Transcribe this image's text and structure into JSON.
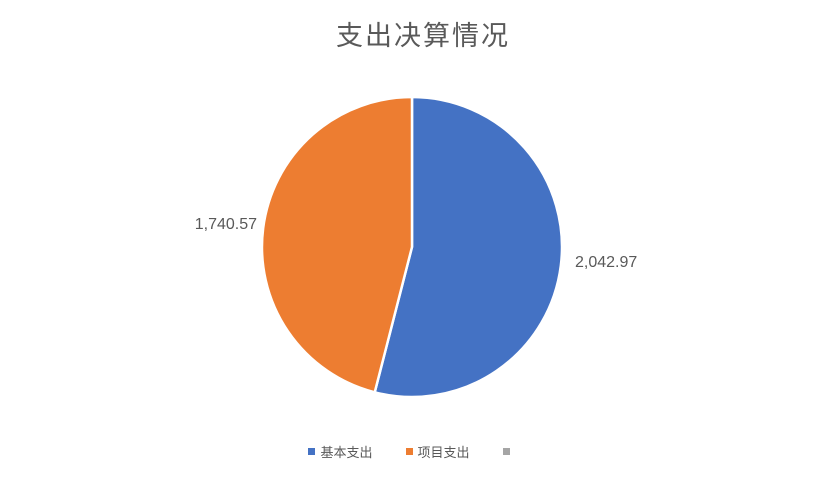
{
  "page": {
    "background_color": "#FFFFFF"
  },
  "chart_data": {
    "type": "pie",
    "title": "支出决算情况",
    "start_angle_deg": 0,
    "direction": "clockwise",
    "radius_px": 150,
    "slices": [
      {
        "label": "基本支出",
        "value": 2042.97,
        "display": "2,042.97",
        "color": "#4472C4"
      },
      {
        "label": "项目支出",
        "value": 1740.57,
        "display": "1,740.57",
        "color": "#ED7D31"
      }
    ],
    "legend": [
      {
        "label": "基本支出",
        "color": "#4472C4"
      },
      {
        "label": "项目支出",
        "color": "#ED7D31"
      },
      {
        "label": "",
        "color": "#A5A5A5"
      }
    ],
    "legend_position": "bottom",
    "data_labels_position": "outside-end"
  },
  "styles": {
    "title_color": "#595959",
    "data_label_color": "#595959",
    "legend_text_color": "#595959",
    "slice_border_color": "#FFFFFF"
  }
}
